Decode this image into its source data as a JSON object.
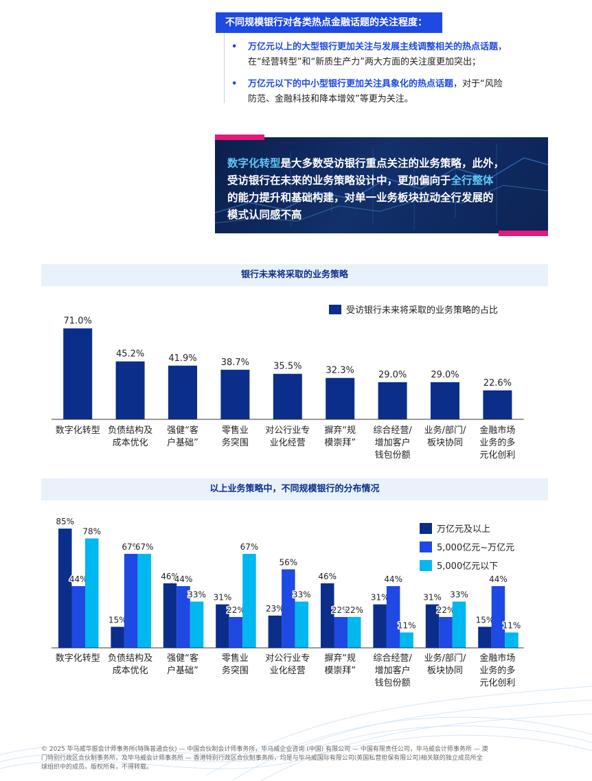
{
  "header": {
    "title": "不同规模银行对各类热点金融话题的关注程度：",
    "findings": [
      {
        "highlight": "万亿元以上的大型银行更加关注与发展主线调整相关的热点话题",
        "line1_rest": "，",
        "line2": "在“经营转型”和“新质生产力”两大方面的关注度更加突出；"
      },
      {
        "highlight": "万亿元以下的中小型银行更加关注具象化的热点话题",
        "line1_rest": "，对于“风险",
        "line2": "防范、金融科技和降本增效”等更为关注。"
      }
    ]
  },
  "banner": {
    "hl1": "数字化转型",
    "t1": "是大多数受访银行重点关注的业务策略，此外，",
    "t2": "受访银行在未来的业务策略设计中，更加偏向于",
    "hl2": "全行整体",
    "t3": "的能力提升和基础构建，对单一业务板块拉动全行发展的",
    "t4": "模式认同感不高"
  },
  "section1": {
    "title": "银行未来将采取的业务策略"
  },
  "section2": {
    "title": "以上业务策略中，不同规模银行的分布情况"
  },
  "chart_data": [
    {
      "type": "bar",
      "categories": [
        [
          "数字化转型"
        ],
        [
          "负债结构及",
          "成本优化"
        ],
        [
          "强健“客",
          "户基础”"
        ],
        [
          "零售业",
          "务突围"
        ],
        [
          "对公行业专",
          "业化经营"
        ],
        [
          "摒弃“规",
          "模崇拜”"
        ],
        [
          "综合经营/",
          "增加客户",
          "钱包份额"
        ],
        [
          "业务/部门/",
          "板块协同"
        ],
        [
          "金融市场",
          "业务的多",
          "元化创利"
        ]
      ],
      "series": [
        {
          "name": "受访银行未来将采取的业务策略的占比",
          "values": [
            71.0,
            45.2,
            41.9,
            38.7,
            35.5,
            32.3,
            29.0,
            29.0,
            22.6
          ],
          "color": "#0b2e8a"
        }
      ],
      "value_labels": [
        "71.0%",
        "45.2%",
        "41.9%",
        "38.7%",
        "35.5%",
        "32.3%",
        "29.0%",
        "29.0%",
        "22.6%"
      ],
      "ylim": [
        0,
        75
      ],
      "legend_position": "top-right"
    },
    {
      "type": "bar",
      "categories": [
        [
          "数字化转型"
        ],
        [
          "负债结构及",
          "成本优化"
        ],
        [
          "强健“客",
          "户基础”"
        ],
        [
          "零售业",
          "务突围"
        ],
        [
          "对公行业专",
          "业化经营"
        ],
        [
          "摒弃“规",
          "模崇拜”"
        ],
        [
          "综合经营/",
          "增加客户",
          "钱包份额"
        ],
        [
          "业务/部门/",
          "板块协同"
        ],
        [
          "金融市场",
          "业务的多",
          "元化创利"
        ]
      ],
      "series": [
        {
          "name": "万亿元及以上",
          "values": [
            85,
            15,
            46,
            31,
            23,
            46,
            31,
            31,
            15
          ],
          "labels": [
            "85%",
            "15%",
            "46%",
            "31%",
            "23%",
            "46%",
            "31%",
            "31%",
            "15%"
          ],
          "color": "#0b2e8a"
        },
        {
          "name": "5,000亿元~万亿元",
          "values": [
            44,
            67,
            44,
            22,
            56,
            22,
            44,
            22,
            44
          ],
          "labels": [
            "44%",
            "67%",
            "44%",
            "22%",
            "56%",
            "22%",
            "44%",
            "22%",
            "44%"
          ],
          "color": "#1e49e2"
        },
        {
          "name": "5,000亿元以下",
          "values": [
            78,
            67,
            33,
            67,
            33,
            22,
            11,
            33,
            11
          ],
          "labels": [
            "78%",
            "67%",
            "33%",
            "67%",
            "33%",
            "22%",
            "11%",
            "33%",
            "11%"
          ],
          "color": "#00b8f0"
        }
      ],
      "ylim": [
        0,
        90
      ],
      "legend_position": "top-right"
    }
  ],
  "footer": {
    "lines": [
      "© 2025 毕马威华振会计师事务所(特殊普通合伙) — 中国合伙制会计师事务所，毕马威企业咨询 (中国) 有限公司 — 中国有限责任公司，毕马威会计师事务所 — 澳",
      "门特别行政区合伙制事务所，及毕马威会计师事务所 — 香港特别行政区合伙制事务所，均是与毕马威国际有限公司(英国私营担保有限公司)相关联的独立成员所全",
      "球组织中的成员。版权所有，不得转载。"
    ]
  }
}
